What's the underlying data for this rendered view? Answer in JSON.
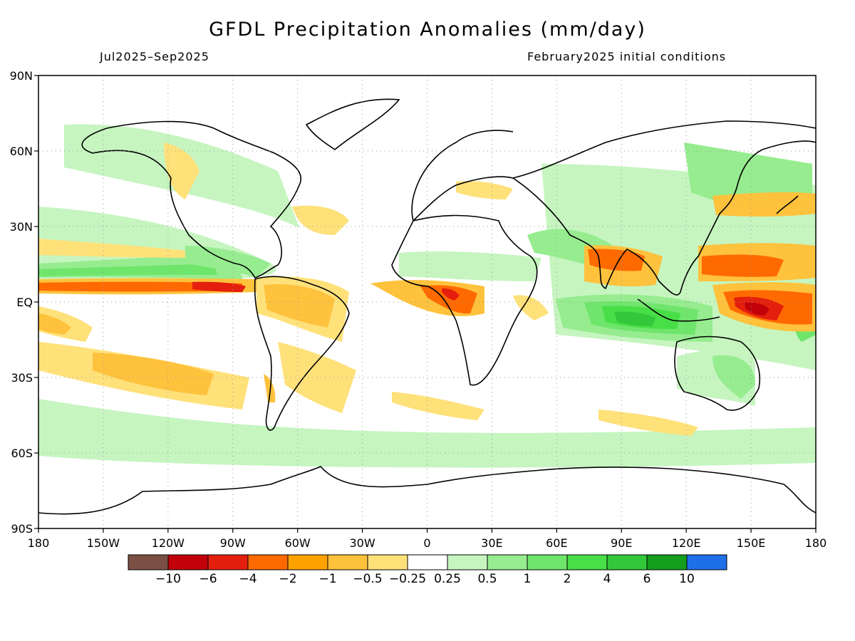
{
  "title": "GFDL Precipitation Anomalies (mm/day)",
  "period": "Jul2025–Sep2025",
  "init": "February2025 initial conditions",
  "lon_ticks": [
    "180",
    "150W",
    "120W",
    "90W",
    "60W",
    "30W",
    "0",
    "30E",
    "60E",
    "90E",
    "120E",
    "150E",
    "180"
  ],
  "lat_ticks": [
    "90N",
    "60N",
    "30N",
    "EQ",
    "30S",
    "60S",
    "90S"
  ],
  "colorbar": {
    "colors": [
      "#7a5045",
      "#c1000a",
      "#e41f0e",
      "#ff6a00",
      "#ffa200",
      "#ffc23d",
      "#ffe17a",
      "#ffffff",
      "#c6f5c0",
      "#96ec8f",
      "#6fe56c",
      "#48de48",
      "#32c83a",
      "#139e1c",
      "#1f6fe8"
    ],
    "labels": [
      "−10",
      "−6",
      "−4",
      "−2",
      "−1",
      "−0.5",
      "−0.25",
      "0.25",
      "0.5",
      "1",
      "2",
      "4",
      "6",
      "10"
    ]
  },
  "anomaly_regions": [
    {
      "region": "Western tropical Pacific",
      "lon": [
        135,
        180
      ],
      "lat": [
        -10,
        5
      ],
      "level": -6
    },
    {
      "region": "Western Pacific north of equator",
      "lon": [
        115,
        180
      ],
      "lat": [
        5,
        20
      ],
      "level": -2
    },
    {
      "region": "Eastern Pacific ITCZ",
      "lon": [
        -180,
        -80
      ],
      "lat": [
        4,
        8
      ],
      "level": -2
    },
    {
      "region": "Eastern Pacific ITCZ north flank",
      "lon": [
        -180,
        -85
      ],
      "lat": [
        9,
        13
      ],
      "level": 1
    },
    {
      "region": "Central equatorial Africa",
      "lon": [
        -5,
        30
      ],
      "lat": [
        -5,
        8
      ],
      "level": -2
    },
    {
      "region": "Sahel",
      "lon": [
        -15,
        35
      ],
      "lat": [
        10,
        18
      ],
      "level": 0.5
    },
    {
      "region": "Eastern Indian Ocean / Sumatra",
      "lon": [
        75,
        110
      ],
      "lat": [
        -15,
        -3
      ],
      "level": 4
    },
    {
      "region": "Bay of Bengal",
      "lon": [
        80,
        95
      ],
      "lat": [
        12,
        22
      ],
      "level": -1
    },
    {
      "region": "Northern South America",
      "lon": [
        -80,
        -40
      ],
      "lat": [
        -15,
        5
      ],
      "level": -1
    },
    {
      "region": "South Pacific convergence band",
      "lon": [
        -180,
        -90
      ],
      "lat": [
        -35,
        -20
      ],
      "level": -1
    },
    {
      "region": "Southern Ocean",
      "lon": [
        -180,
        180
      ],
      "lat": [
        -62,
        -45
      ],
      "level": 0.5
    },
    {
      "region": "Australia",
      "lon": [
        115,
        150
      ],
      "lat": [
        -38,
        -15
      ],
      "level": 0.5
    },
    {
      "region": "North Pacific",
      "lon": [
        140,
        180
      ],
      "lat": [
        25,
        35
      ],
      "level": -1
    },
    {
      "region": "Mexico / Caribbean",
      "lon": [
        -110,
        -60
      ],
      "lat": [
        12,
        25
      ],
      "level": 1
    }
  ]
}
